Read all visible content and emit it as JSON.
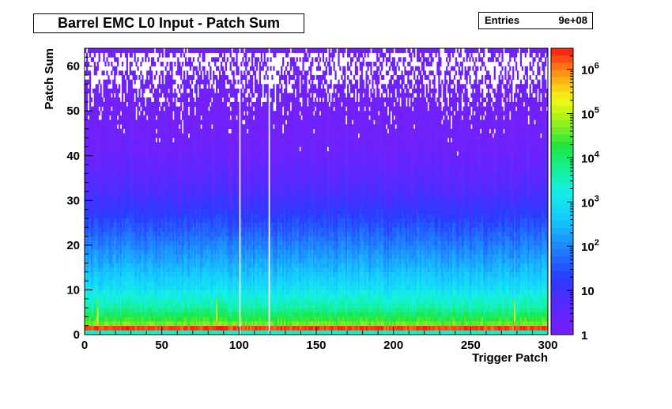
{
  "chart_data": {
    "type": "heatmap",
    "title": "Barrel EMC L0 Input - Patch Sum",
    "stats": {
      "label": "Entries",
      "value": "9e+08"
    },
    "xlabel": "Trigger Patch",
    "ylabel": "Patch Sum",
    "xlim": [
      0,
      300
    ],
    "ylim": [
      0,
      64
    ],
    "x_ticks": [
      0,
      50,
      100,
      150,
      200,
      250,
      300
    ],
    "y_ticks": [
      0,
      10,
      20,
      30,
      40,
      50,
      60
    ],
    "z_scale": "log",
    "zlim": [
      1,
      3000000
    ],
    "z_ticks": [
      {
        "value": 1,
        "label": "1"
      },
      {
        "value": 10,
        "label": "10"
      },
      {
        "value": 100,
        "label": "10^2"
      },
      {
        "value": 1000,
        "label": "10^3"
      },
      {
        "value": 10000,
        "label": "10^4"
      },
      {
        "value": 100000,
        "label": "10^5"
      },
      {
        "value": 1000000,
        "label": "10^6"
      }
    ],
    "profile_by_patch_sum": [
      {
        "y": 0,
        "count": 3000
      },
      {
        "y": 1,
        "count": 2000000
      },
      {
        "y": 2,
        "count": 40000
      },
      {
        "y": 4,
        "count": 12000
      },
      {
        "y": 6,
        "count": 4000
      },
      {
        "y": 8,
        "count": 2000
      },
      {
        "y": 10,
        "count": 900
      },
      {
        "y": 15,
        "count": 250
      },
      {
        "y": 20,
        "count": 80
      },
      {
        "y": 25,
        "count": 25
      },
      {
        "y": 30,
        "count": 9
      },
      {
        "y": 35,
        "count": 4
      },
      {
        "y": 40,
        "count": 2
      },
      {
        "y": 45,
        "count": 1.3
      },
      {
        "y": 50,
        "count": 1
      },
      {
        "y": 55,
        "count": 0.6
      },
      {
        "y": 60,
        "count": 0.4
      },
      {
        "y": 62,
        "count": 0.3
      },
      {
        "y": 63,
        "count": 1
      }
    ],
    "empty_patches": [
      100,
      119,
      300
    ],
    "hot_patches": [
      8,
      85,
      278
    ]
  }
}
